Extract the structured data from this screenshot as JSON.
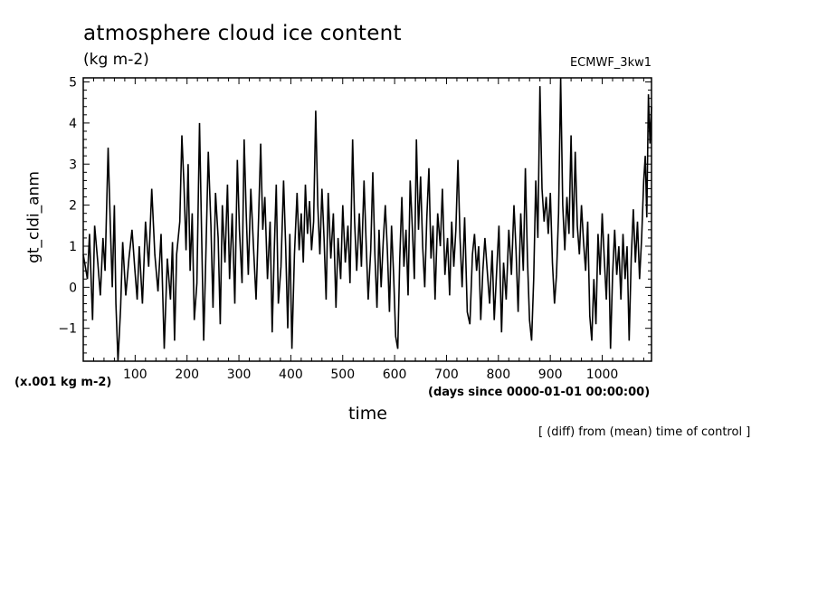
{
  "chart_data": {
    "type": "line",
    "title": "atmosphere cloud ice content",
    "units": "(kg m-2)",
    "model": "ECMWF_3kw1",
    "ylabel": "gt_cldi_anm",
    "yscale_note": "(x.001 kg m-2)",
    "xlabel": "time",
    "xunits": "(days since 0000-01-01 00:00:00)",
    "note": "[ (diff) from (mean) time of control ]",
    "xlim": [
      0,
      1095
    ],
    "ylim": [
      -1.8,
      5.1
    ],
    "xticks": [
      100,
      200,
      300,
      400,
      500,
      600,
      700,
      800,
      900,
      1000
    ],
    "yticks": [
      -1,
      0,
      1,
      2,
      3,
      4,
      5
    ],
    "series": [
      {
        "name": "gt_cldi_anm",
        "keypoints": [
          [
            0,
            0.8
          ],
          [
            8,
            0.2
          ],
          [
            12,
            1.3
          ],
          [
            18,
            -0.8
          ],
          [
            22,
            1.5
          ],
          [
            28,
            0.6
          ],
          [
            33,
            -0.2
          ],
          [
            38,
            1.2
          ],
          [
            42,
            0.4
          ],
          [
            48,
            3.4
          ],
          [
            52,
            1.6
          ],
          [
            56,
            0.0
          ],
          [
            60,
            2.0
          ],
          [
            63,
            -0.4
          ],
          [
            67,
            -1.8
          ],
          [
            72,
            -0.5
          ],
          [
            76,
            1.1
          ],
          [
            82,
            -0.2
          ],
          [
            88,
            0.7
          ],
          [
            94,
            1.4
          ],
          [
            99,
            0.5
          ],
          [
            104,
            -0.3
          ],
          [
            108,
            1.0
          ],
          [
            114,
            -0.4
          ],
          [
            120,
            1.6
          ],
          [
            126,
            0.5
          ],
          [
            132,
            2.4
          ],
          [
            138,
            0.8
          ],
          [
            144,
            -0.1
          ],
          [
            150,
            1.3
          ],
          [
            156,
            -1.5
          ],
          [
            162,
            0.7
          ],
          [
            168,
            -0.3
          ],
          [
            172,
            1.1
          ],
          [
            176,
            -1.3
          ],
          [
            180,
            0.8
          ],
          [
            186,
            1.6
          ],
          [
            190,
            3.7
          ],
          [
            194,
            2.5
          ],
          [
            198,
            0.9
          ],
          [
            202,
            3.0
          ],
          [
            206,
            0.4
          ],
          [
            210,
            1.8
          ],
          [
            214,
            -0.8
          ],
          [
            219,
            0.1
          ],
          [
            224,
            4.0
          ],
          [
            228,
            1.3
          ],
          [
            232,
            -1.3
          ],
          [
            236,
            0.6
          ],
          [
            241,
            3.3
          ],
          [
            246,
            1.5
          ],
          [
            250,
            -0.5
          ],
          [
            255,
            2.3
          ],
          [
            260,
            1.2
          ],
          [
            264,
            -0.9
          ],
          [
            268,
            2.0
          ],
          [
            273,
            0.6
          ],
          [
            278,
            2.5
          ],
          [
            282,
            0.2
          ],
          [
            287,
            1.8
          ],
          [
            292,
            -0.4
          ],
          [
            297,
            3.1
          ],
          [
            301,
            1.4
          ],
          [
            306,
            0.1
          ],
          [
            310,
            3.6
          ],
          [
            314,
            1.8
          ],
          [
            318,
            0.3
          ],
          [
            323,
            2.4
          ],
          [
            328,
            1.0
          ],
          [
            333,
            -0.3
          ],
          [
            338,
            1.7
          ],
          [
            342,
            3.5
          ],
          [
            346,
            1.4
          ],
          [
            350,
            2.2
          ],
          [
            355,
            0.2
          ],
          [
            360,
            1.6
          ],
          [
            364,
            -1.1
          ],
          [
            368,
            0.9
          ],
          [
            372,
            2.5
          ],
          [
            376,
            -0.4
          ],
          [
            381,
            0.5
          ],
          [
            386,
            2.6
          ],
          [
            390,
            1.0
          ],
          [
            394,
            -1.0
          ],
          [
            398,
            1.3
          ],
          [
            402,
            -1.5
          ],
          [
            407,
            0.8
          ],
          [
            412,
            2.3
          ],
          [
            416,
            0.9
          ],
          [
            420,
            1.8
          ],
          [
            424,
            0.6
          ],
          [
            428,
            2.5
          ],
          [
            432,
            1.3
          ],
          [
            436,
            2.1
          ],
          [
            440,
            0.9
          ],
          [
            444,
            1.6
          ],
          [
            448,
            4.3
          ],
          [
            452,
            2.0
          ],
          [
            456,
            0.8
          ],
          [
            460,
            2.4
          ],
          [
            464,
            1.2
          ],
          [
            468,
            -0.3
          ],
          [
            472,
            2.3
          ],
          [
            477,
            0.7
          ],
          [
            482,
            1.8
          ],
          [
            487,
            -0.5
          ],
          [
            491,
            1.2
          ],
          [
            496,
            0.2
          ],
          [
            500,
            2.0
          ],
          [
            505,
            0.6
          ],
          [
            510,
            1.5
          ],
          [
            514,
            0.1
          ],
          [
            519,
            3.6
          ],
          [
            523,
            1.6
          ],
          [
            527,
            0.4
          ],
          [
            532,
            1.8
          ],
          [
            536,
            0.5
          ],
          [
            541,
            2.6
          ],
          [
            545,
            1.1
          ],
          [
            549,
            -0.3
          ],
          [
            554,
            0.9
          ],
          [
            558,
            2.8
          ],
          [
            562,
            0.8
          ],
          [
            566,
            -0.5
          ],
          [
            570,
            1.4
          ],
          [
            574,
            0.0
          ],
          [
            578,
            1.1
          ],
          [
            582,
            2.0
          ],
          [
            586,
            0.9
          ],
          [
            590,
            -0.6
          ],
          [
            594,
            1.5
          ],
          [
            598,
            0.3
          ],
          [
            602,
            -1.2
          ],
          [
            606,
            -1.5
          ],
          [
            610,
            0.7
          ],
          [
            614,
            2.2
          ],
          [
            618,
            0.5
          ],
          [
            622,
            1.4
          ],
          [
            626,
            -0.2
          ],
          [
            630,
            2.6
          ],
          [
            634,
            1.5
          ],
          [
            638,
            0.2
          ],
          [
            642,
            3.6
          ],
          [
            646,
            1.4
          ],
          [
            650,
            2.7
          ],
          [
            654,
            1.0
          ],
          [
            658,
            0.0
          ],
          [
            662,
            1.7
          ],
          [
            666,
            2.9
          ],
          [
            670,
            0.7
          ],
          [
            674,
            1.5
          ],
          [
            678,
            -0.3
          ],
          [
            683,
            1.8
          ],
          [
            688,
            1.0
          ],
          [
            692,
            2.4
          ],
          [
            697,
            0.3
          ],
          [
            702,
            1.2
          ],
          [
            706,
            -0.2
          ],
          [
            710,
            1.6
          ],
          [
            714,
            0.5
          ],
          [
            718,
            1.4
          ],
          [
            722,
            3.1
          ],
          [
            726,
            1.2
          ],
          [
            730,
            0.0
          ],
          [
            735,
            1.7
          ],
          [
            740,
            -0.6
          ],
          [
            745,
            -0.9
          ],
          [
            750,
            0.8
          ],
          [
            754,
            1.3
          ],
          [
            758,
            0.4
          ],
          [
            762,
            1.0
          ],
          [
            766,
            -0.8
          ],
          [
            770,
            0.4
          ],
          [
            774,
            1.2
          ],
          [
            779,
            0.3
          ],
          [
            783,
            -0.4
          ],
          [
            788,
            0.9
          ],
          [
            792,
            -0.8
          ],
          [
            797,
            0.5
          ],
          [
            801,
            1.5
          ],
          [
            806,
            -1.1
          ],
          [
            810,
            0.6
          ],
          [
            815,
            -0.3
          ],
          [
            820,
            1.4
          ],
          [
            825,
            0.3
          ],
          [
            830,
            2.0
          ],
          [
            834,
            0.9
          ],
          [
            838,
            -0.6
          ],
          [
            843,
            1.8
          ],
          [
            848,
            0.4
          ],
          [
            852,
            2.9
          ],
          [
            856,
            0.7
          ],
          [
            860,
            -0.8
          ],
          [
            864,
            -1.3
          ],
          [
            868,
            0.2
          ],
          [
            872,
            2.6
          ],
          [
            876,
            1.2
          ],
          [
            880,
            4.9
          ],
          [
            884,
            2.4
          ],
          [
            888,
            1.6
          ],
          [
            892,
            2.2
          ],
          [
            896,
            1.3
          ],
          [
            900,
            2.3
          ],
          [
            904,
            0.6
          ],
          [
            908,
            -0.4
          ],
          [
            912,
            0.3
          ],
          [
            916,
            1.8
          ],
          [
            920,
            5.1
          ],
          [
            924,
            2.0
          ],
          [
            928,
            0.9
          ],
          [
            932,
            2.2
          ],
          [
            936,
            1.3
          ],
          [
            940,
            3.7
          ],
          [
            944,
            1.2
          ],
          [
            948,
            3.3
          ],
          [
            952,
            1.5
          ],
          [
            956,
            0.8
          ],
          [
            960,
            2.0
          ],
          [
            964,
            1.1
          ],
          [
            968,
            0.4
          ],
          [
            972,
            1.6
          ],
          [
            976,
            -0.7
          ],
          [
            980,
            -1.3
          ],
          [
            984,
            0.2
          ],
          [
            988,
            -0.9
          ],
          [
            992,
            1.3
          ],
          [
            996,
            0.3
          ],
          [
            1000,
            1.8
          ],
          [
            1004,
            0.7
          ],
          [
            1008,
            -0.3
          ],
          [
            1012,
            1.3
          ],
          [
            1016,
            -1.5
          ],
          [
            1020,
            0.3
          ],
          [
            1024,
            1.4
          ],
          [
            1028,
            0.3
          ],
          [
            1032,
            1.0
          ],
          [
            1036,
            -0.3
          ],
          [
            1040,
            1.3
          ],
          [
            1044,
            0.2
          ],
          [
            1048,
            1.0
          ],
          [
            1052,
            -1.3
          ],
          [
            1056,
            0.7
          ],
          [
            1060,
            1.9
          ],
          [
            1064,
            0.6
          ],
          [
            1068,
            1.6
          ],
          [
            1072,
            0.2
          ],
          [
            1076,
            1.2
          ],
          [
            1080,
            2.6
          ],
          [
            1083,
            3.2
          ],
          [
            1086,
            1.7
          ],
          [
            1089,
            4.7
          ],
          [
            1092,
            3.5
          ],
          [
            1095,
            4.4
          ]
        ]
      }
    ]
  }
}
